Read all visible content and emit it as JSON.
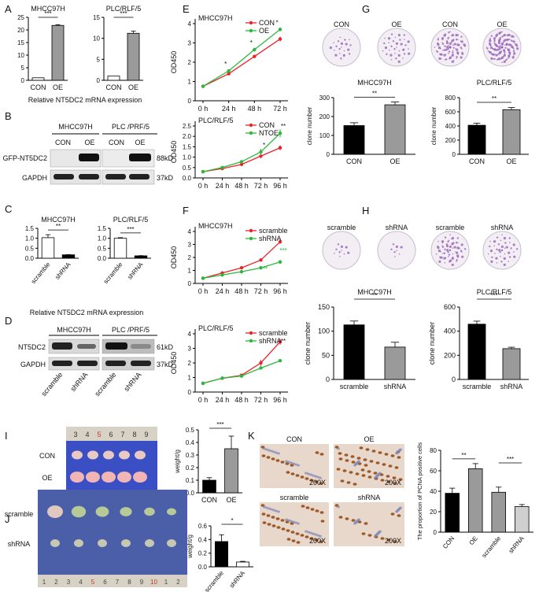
{
  "panel_letters": [
    "A",
    "B",
    "C",
    "D",
    "E",
    "F",
    "G",
    "H",
    "I",
    "J",
    "K"
  ],
  "common": {
    "sig_label_ns": "",
    "xlabel_mrna": "Relative NT5DC2 mRNA expression"
  },
  "blots": {
    "B": {
      "group_labels": [
        "MHCC97H",
        "PLC /PRF/5"
      ],
      "lane_labels": [
        "CON",
        "OE",
        "CON",
        "OE"
      ],
      "row_labels": [
        "GFP-NT5DC2",
        "GAPDH"
      ],
      "size_labels": [
        "88kD",
        "37kD"
      ]
    },
    "D": {
      "group_labels": [
        "MHCC97H",
        "PLC /PRF/5"
      ],
      "lane_labels": [
        "scramble",
        "shRNA",
        "scramble",
        "shRNA"
      ],
      "row_labels": [
        "NT5DC2",
        "GAPDH"
      ],
      "size_labels": [
        "61kD",
        "37kD"
      ]
    }
  },
  "dishes": {
    "G": {
      "labels": [
        "CON",
        "OE",
        "CON",
        "OE"
      ]
    },
    "H": {
      "labels": [
        "scramble",
        "shRNA",
        "scramble",
        "shRNA"
      ]
    }
  },
  "photos": {
    "I": {
      "row_labels": [
        "CON",
        "OE"
      ],
      "ruler": [
        "3",
        "4",
        "5",
        "6",
        "7",
        "8",
        "9"
      ]
    },
    "J": {
      "row_labels": [
        "scramble",
        "shRNA"
      ],
      "ruler": [
        "1",
        "2",
        "3",
        "4",
        "5",
        "6",
        "7",
        "8",
        "9",
        "10",
        "1",
        "2"
      ]
    },
    "K": {
      "labels": [
        "CON",
        "OE",
        "scramble",
        "shRNA"
      ],
      "mag": "200X"
    }
  },
  "colors": {
    "con": "#e8252b",
    "oe": "#2db83d",
    "black": "#000000",
    "grey": "#9a9a9a",
    "light": "#cfcfcf"
  },
  "chart_data": [
    {
      "id": "A1",
      "type": "bar",
      "title": "MHCC97H",
      "categories": [
        "CON",
        "OE"
      ],
      "values": [
        1,
        21.8
      ],
      "errors": [
        0,
        0.3
      ],
      "ylim": [
        0,
        25
      ],
      "yticks": [
        0,
        5,
        10,
        15,
        20,
        25
      ],
      "sig": "***",
      "fills": [
        "white",
        "grey"
      ]
    },
    {
      "id": "A2",
      "type": "bar",
      "title": "PLC/RLF/5",
      "categories": [
        "CON",
        "OE"
      ],
      "values": [
        1,
        11.2
      ],
      "errors": [
        0,
        0.5
      ],
      "ylim": [
        0,
        15
      ],
      "yticks": [
        0,
        5,
        10,
        15
      ],
      "sig": "***",
      "fills": [
        "white",
        "grey"
      ]
    },
    {
      "id": "C1",
      "type": "bar",
      "title": "MHCC97H",
      "categories": [
        "scramble",
        "shRNA"
      ],
      "values": [
        1.03,
        0.17
      ],
      "errors": [
        0.15,
        0.01
      ],
      "ylim": [
        0,
        1.5
      ],
      "yticks": [
        "0.0",
        "0.5",
        "1.0",
        "1.5"
      ],
      "sig": "**",
      "fills": [
        "white",
        "black"
      ]
    },
    {
      "id": "C2",
      "type": "bar",
      "title": "PLC/RLF/5",
      "categories": [
        "scramble",
        "shRNA"
      ],
      "values": [
        1.0,
        0.12
      ],
      "errors": [
        0.03,
        0.01
      ],
      "ylim": [
        0,
        1.5
      ],
      "yticks": [
        "0.0",
        "0.5",
        "1.0",
        "1.5"
      ],
      "sig": "***",
      "fills": [
        "white",
        "black"
      ]
    },
    {
      "id": "E1",
      "type": "line",
      "title": "MHCC97H",
      "ylabel": "OD450",
      "categories": [
        "0 h",
        "24 h",
        "48 h",
        "72 h"
      ],
      "ylim": [
        0,
        4
      ],
      "yticks": [
        0,
        1,
        2,
        3,
        4
      ],
      "series": [
        {
          "name": "CON",
          "color": "#e8252b",
          "values": [
            0.75,
            1.4,
            2.3,
            3.2
          ],
          "errors": [
            0.03,
            0.05,
            0.08,
            0.12
          ]
        },
        {
          "name": "OE",
          "color": "#2db83d",
          "values": [
            0.75,
            1.55,
            2.65,
            3.7
          ],
          "errors": [
            0.03,
            0.05,
            0.1,
            0.1
          ]
        }
      ],
      "sig": [
        "*",
        "*",
        "*"
      ],
      "legend": "top-right"
    },
    {
      "id": "E2",
      "type": "line",
      "title": "PLC/RLF/5",
      "ylabel": "OD450",
      "categories": [
        "0 h",
        "24 h",
        "48 h",
        "72 h",
        "96 h"
      ],
      "ylim": [
        0,
        2.5
      ],
      "yticks": [
        "0.0",
        "0.5",
        "1.0",
        "1.5",
        "2.0",
        "2.5"
      ],
      "series": [
        {
          "name": "CON",
          "color": "#e8252b",
          "values": [
            0.3,
            0.45,
            0.65,
            1.05,
            1.45
          ],
          "errors": [
            0.02,
            0.03,
            0.05,
            0.1,
            0.12
          ]
        },
        {
          "name": "NTOE",
          "color": "#2db83d",
          "values": [
            0.3,
            0.5,
            0.78,
            1.25,
            2.15
          ],
          "errors": [
            0.02,
            0.03,
            0.05,
            0.15,
            0.2
          ]
        }
      ],
      "sig": [
        "*",
        "**"
      ],
      "legend": "top-right"
    },
    {
      "id": "F1",
      "type": "line",
      "title": "MHCC97H",
      "ylabel": "OD450",
      "categories": [
        "0 h",
        "24 h",
        "48 h",
        "72 h",
        "96 h"
      ],
      "ylim": [
        0,
        4
      ],
      "yticks": [
        0,
        1,
        2,
        3,
        4
      ],
      "series": [
        {
          "name": "scramble",
          "color": "#e8252b",
          "values": [
            0.4,
            0.8,
            1.2,
            1.8,
            3.2
          ],
          "errors": [
            0.02,
            0.05,
            0.08,
            0.12,
            0.15
          ]
        },
        {
          "name": "shRNA",
          "color": "#2db83d",
          "values": [
            0.4,
            0.65,
            0.9,
            1.2,
            1.65
          ],
          "errors": [
            0.02,
            0.04,
            0.06,
            0.08,
            0.15
          ]
        }
      ],
      "sig": [
        "***",
        "***"
      ],
      "legend": "top-right"
    },
    {
      "id": "F2",
      "type": "line",
      "title": "PLC/RLF/5",
      "ylabel": "OD450",
      "categories": [
        "0 h",
        "24 h",
        "48 h",
        "72 h",
        "96 h"
      ],
      "ylim": [
        0,
        4
      ],
      "yticks": [
        0,
        1,
        2,
        3,
        4
      ],
      "series": [
        {
          "name": "scramble",
          "color": "#e8252b",
          "values": [
            0.6,
            0.95,
            1.15,
            2.0,
            3.45
          ],
          "errors": [
            0.02,
            0.04,
            0.08,
            0.2,
            0.2
          ]
        },
        {
          "name": "shRNA",
          "color": "#2db83d",
          "values": [
            0.6,
            0.95,
            1.1,
            1.65,
            2.15
          ],
          "errors": [
            0.02,
            0.04,
            0.06,
            0.1,
            0.1
          ]
        }
      ],
      "sig": [
        "**"
      ],
      "legend": "top-right"
    },
    {
      "id": "G1",
      "type": "bar",
      "title": "MHCC97H",
      "ylabel": "clone number",
      "categories": [
        "CON",
        "OE"
      ],
      "values": [
        152,
        262
      ],
      "errors": [
        15,
        15
      ],
      "ylim": [
        0,
        300
      ],
      "yticks": [
        0,
        100,
        200,
        300
      ],
      "sig": "**",
      "fills": [
        "black",
        "grey"
      ]
    },
    {
      "id": "G2",
      "type": "bar",
      "title": "PLC/RLF/5",
      "ylabel": "clone number",
      "categories": [
        "CON",
        "OE"
      ],
      "values": [
        410,
        630
      ],
      "errors": [
        30,
        30
      ],
      "ylim": [
        0,
        800
      ],
      "yticks": [
        0,
        200,
        400,
        600,
        800
      ],
      "sig": "**",
      "fills": [
        "black",
        "grey"
      ]
    },
    {
      "id": "H1",
      "type": "bar",
      "title": "MHCC97H",
      "ylabel": "clone number",
      "categories": [
        "scramble",
        "shRNA"
      ],
      "values": [
        113,
        67
      ],
      "errors": [
        8,
        10
      ],
      "ylim": [
        0,
        150
      ],
      "yticks": [
        0,
        50,
        100,
        150
      ],
      "sig": "**",
      "fills": [
        "black",
        "grey"
      ]
    },
    {
      "id": "H2",
      "type": "bar",
      "title": "PLC/RLF/5",
      "ylabel": "clone number",
      "categories": [
        "scramble",
        "shRNA"
      ],
      "values": [
        458,
        255
      ],
      "errors": [
        25,
        12
      ],
      "ylim": [
        0,
        600
      ],
      "yticks": [
        0,
        200,
        400,
        600
      ],
      "sig": "***",
      "fills": [
        "black",
        "grey"
      ]
    },
    {
      "id": "I",
      "type": "bar",
      "ylabel": "weight/g",
      "categories": [
        "CON",
        "OE"
      ],
      "values": [
        0.1,
        0.35
      ],
      "errors": [
        0.02,
        0.1
      ],
      "ylim": [
        0,
        0.5
      ],
      "yticks": [
        "0.0",
        "0.1",
        "0.2",
        "0.3",
        "0.4",
        "0.5"
      ],
      "sig": "***",
      "fills": [
        "black",
        "grey"
      ]
    },
    {
      "id": "J",
      "type": "bar",
      "ylabel": "weight/g",
      "categories": [
        "scramble",
        "shRNA"
      ],
      "values": [
        0.37,
        0.07
      ],
      "errors": [
        0.1,
        0.01
      ],
      "ylim": [
        0,
        0.6
      ],
      "yticks": [
        "0.0",
        "0.2",
        "0.4",
        "0.6"
      ],
      "sig": "*",
      "fills": [
        "black",
        "white"
      ]
    },
    {
      "id": "K",
      "type": "bar",
      "ylabel": "The proportion of PCNA positive cells",
      "categories": [
        "CON",
        "OE",
        "scramble",
        "shRNA"
      ],
      "values": [
        38,
        62,
        39,
        25
      ],
      "errors": [
        5,
        5,
        5,
        2
      ],
      "ylim": [
        0,
        80
      ],
      "yticks": [
        0,
        20,
        40,
        60,
        80
      ],
      "sig": [
        "**",
        "***"
      ],
      "fills": [
        "black",
        "grey",
        "grey",
        "light"
      ]
    }
  ]
}
